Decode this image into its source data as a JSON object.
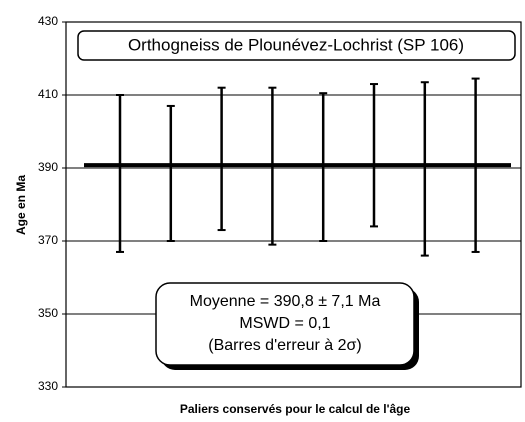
{
  "chart_data": {
    "type": "errorbar",
    "title": "Orthogneiss de Plounévez-Lochrist (SP 106)",
    "x_label": "Paliers conservés pour le calcul de l'âge",
    "y_label": "Age en Ma",
    "categories": [
      null,
      null,
      null,
      null,
      null,
      null,
      null,
      null
    ],
    "values": [
      388.5,
      388.5,
      392.5,
      390.5,
      390.25,
      393.5,
      389.75,
      390.75
    ],
    "errors": [
      21.5,
      18.5,
      19.5,
      21.5,
      20.25,
      19.5,
      23.75,
      23.75
    ],
    "color": "#000000",
    "mean": 390.8,
    "annotation": [
      "Moyenne = 390,8 ± 7,1  Ma",
      "MSWD = 0,1",
      "(Barres d'erreur à 2σ)"
    ],
    "ylim": [
      330,
      430
    ],
    "yticks": [
      330,
      350,
      370,
      390,
      410,
      430
    ],
    "grid": true
  }
}
